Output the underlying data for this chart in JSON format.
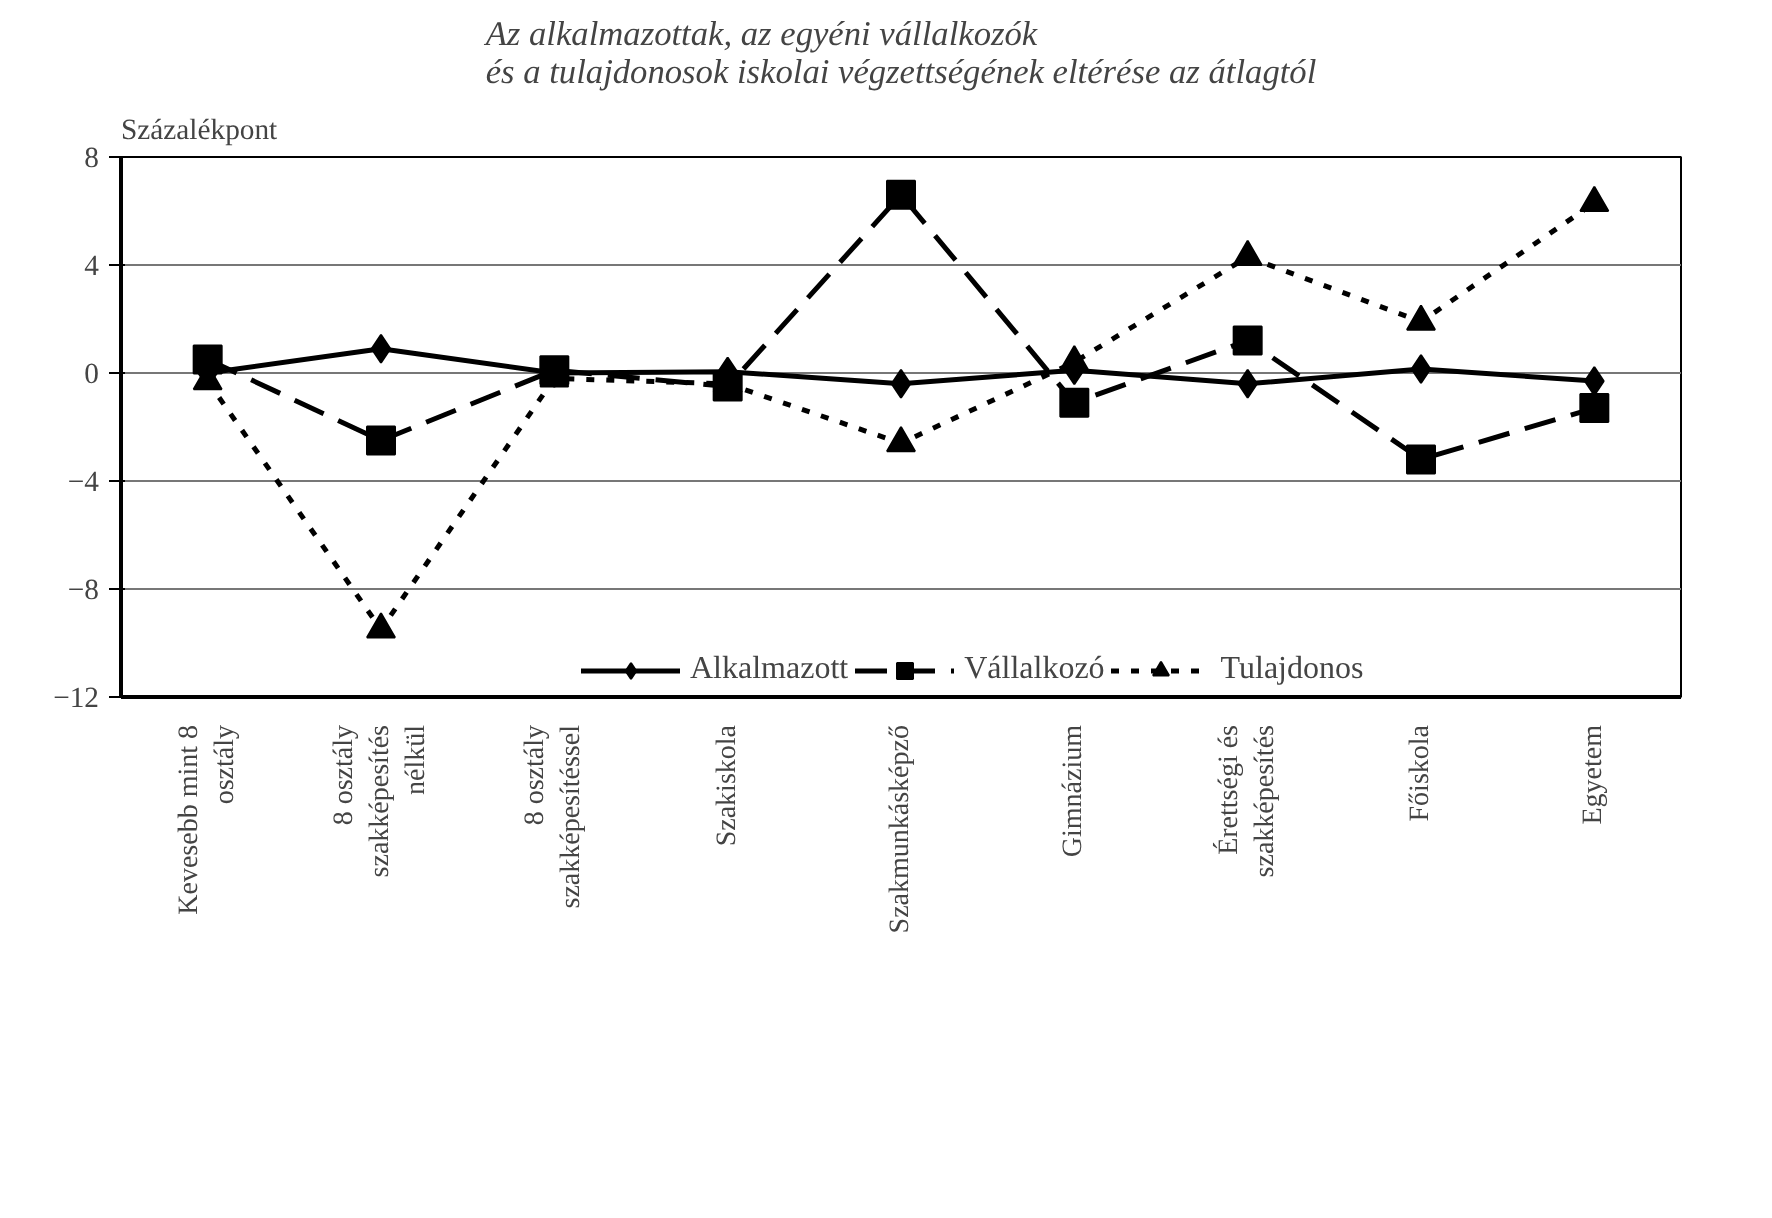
{
  "chart_data": {
    "type": "line",
    "title": "Az alkalmazottak, az egyéni vállalkozók\nés a tulajdonosok iskolai végzettségének eltérése az átlagtól",
    "ylabel": "Százalékpont",
    "categories": [
      "Kevesebb mint 8\nosztály",
      "8 osztály\nszakképesítés\nnélkül",
      "8 osztály\nszakképesítéssel",
      "Szakiskola",
      "Szakmunkásképző",
      "Gimnázium",
      "Érettségi és\nszakképesítés",
      "Főiskola",
      "Egyetem"
    ],
    "ylim": [
      -12,
      8
    ],
    "yticks": [
      -12,
      -8,
      -4,
      0,
      4,
      8
    ],
    "grid": "y",
    "legend": "bottom",
    "series": [
      {
        "name": "Alkalmazott",
        "color": "#000000",
        "marker": "diamond",
        "line_style": "solid",
        "values": [
          0,
          0.9,
          0,
          0.05,
          -0.4,
          0.1,
          -0.4,
          0.15,
          -0.3
        ]
      },
      {
        "name": "Vállalkozó",
        "color": "#000000",
        "marker": "square",
        "line_style": "dashed",
        "values": [
          0.5,
          -2.5,
          0.1,
          -0.5,
          6.6,
          -1.1,
          1.2,
          -3.2,
          -1.3
        ]
      },
      {
        "name": "Tulajdonos",
        "color": "#000000",
        "marker": "triangle",
        "line_style": "dotted",
        "values": [
          -0.3,
          -9.5,
          -0.2,
          -0.4,
          -2.6,
          0.4,
          4.3,
          1.9,
          6.3
        ]
      }
    ]
  }
}
